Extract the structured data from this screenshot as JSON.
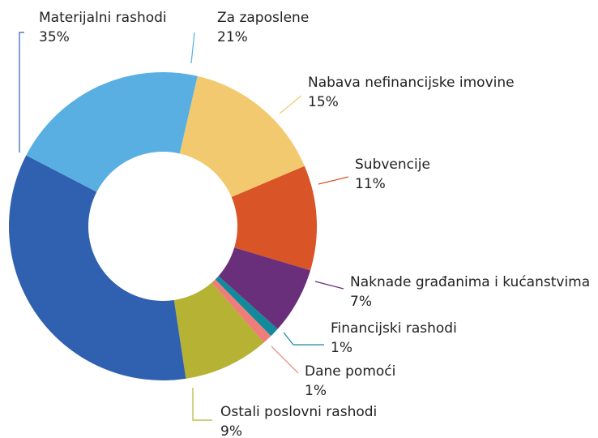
{
  "chart_data": {
    "type": "pie",
    "categories": [
      "Nabava nefinancijske imovine",
      "Subvencije",
      "Naknade građanima i kućanstvima",
      "Financijski rashodi",
      "Dane pomoći",
      "Ostali poslovni rashodi",
      "Materijalni rashodi",
      "Za zaposlene"
    ],
    "values": [
      15,
      11,
      7,
      1,
      1,
      9,
      35,
      21
    ],
    "value_labels": [
      "15%",
      "11%",
      "7%",
      "1%",
      "1%",
      "9%",
      "35%",
      "21%"
    ],
    "colors": [
      "#f2c96e",
      "#d95427",
      "#6a2f7b",
      "#138a9b",
      "#ef7d7a",
      "#b5b234",
      "#3060b0",
      "#5aafe2"
    ]
  }
}
